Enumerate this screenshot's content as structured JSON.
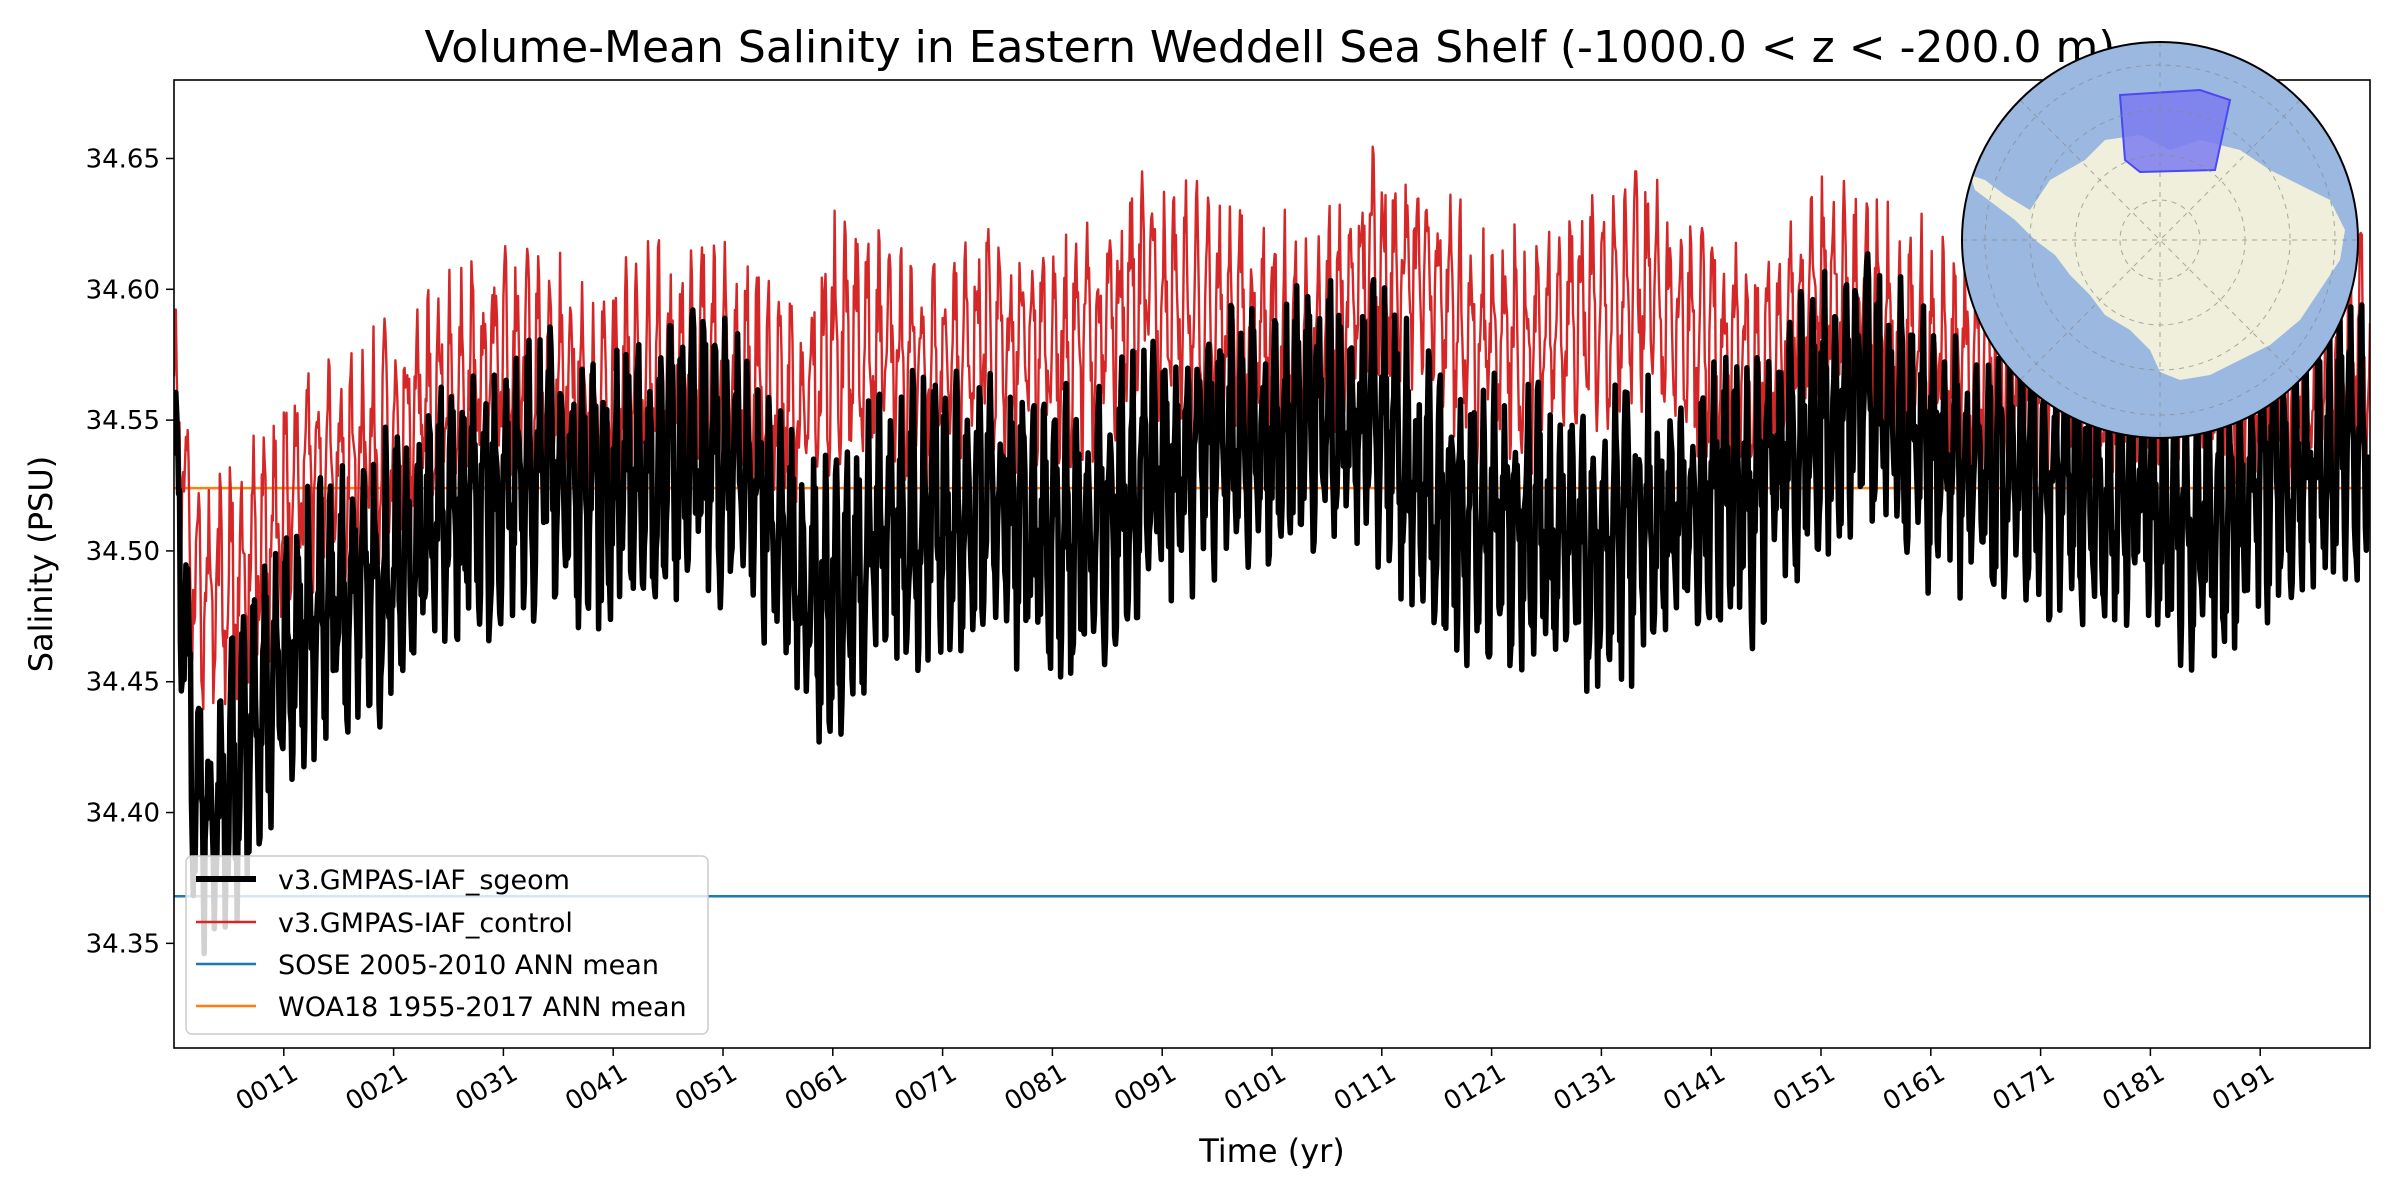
{
  "chart_data": {
    "type": "line",
    "title": "Volume-Mean Salinity in Eastern Weddell Sea Shelf (-1000.0 < z < -200.0 m)",
    "xlabel": "Time (yr)",
    "ylabel": "Salinity (PSU)",
    "xlim": [
      1,
      201
    ],
    "ylim": [
      34.31,
      34.68
    ],
    "x_ticks": [
      11,
      21,
      31,
      41,
      51,
      61,
      71,
      81,
      91,
      101,
      111,
      121,
      131,
      141,
      151,
      161,
      171,
      181,
      191
    ],
    "x_tick_labels": [
      "0011",
      "0021",
      "0031",
      "0041",
      "0051",
      "0061",
      "0071",
      "0081",
      "0091",
      "0101",
      "0111",
      "0121",
      "0131",
      "0141",
      "0151",
      "0161",
      "0171",
      "0181",
      "0191"
    ],
    "y_ticks": [
      34.35,
      34.4,
      34.45,
      34.5,
      34.55,
      34.6,
      34.65
    ],
    "y_tick_labels": [
      "34.35",
      "34.40",
      "34.45",
      "34.50",
      "34.55",
      "34.60",
      "34.65"
    ],
    "grid": false,
    "legend_position": "lower-left",
    "series": [
      {
        "name": "v3.GMPAS-IAF_sgeom",
        "color": "#000000",
        "style": "thick-monthly-series",
        "annual_mean": {
          "years": [
            1,
            3,
            5,
            7,
            10,
            13,
            16,
            20,
            25,
            30,
            35,
            40,
            45,
            50,
            55,
            58,
            61,
            64,
            67,
            70,
            75,
            80,
            85,
            90,
            95,
            100,
            105,
            110,
            115,
            120,
            125,
            130,
            135,
            140,
            145,
            150,
            155,
            160,
            165,
            170,
            175,
            180,
            185,
            190,
            195,
            200
          ],
          "values": [
            34.55,
            34.4,
            34.4,
            34.42,
            34.45,
            34.47,
            34.48,
            34.49,
            34.51,
            34.52,
            34.53,
            34.52,
            34.53,
            34.54,
            34.52,
            34.49,
            34.48,
            34.5,
            34.51,
            34.51,
            34.52,
            34.5,
            34.51,
            34.53,
            34.54,
            34.54,
            34.55,
            34.55,
            34.52,
            34.51,
            34.51,
            34.5,
            34.51,
            34.52,
            34.52,
            34.55,
            34.56,
            34.54,
            34.53,
            34.53,
            34.52,
            34.52,
            34.51,
            34.52,
            34.53,
            34.54
          ]
        },
        "seasonal_amplitude": 0.035
      },
      {
        "name": "v3.GMPAS-IAF_control",
        "color": "#d62728",
        "style": "thin-monthly-series",
        "annual_mean": {
          "years": [
            1,
            3,
            5,
            7,
            10,
            13,
            16,
            20,
            25,
            30,
            35,
            40,
            45,
            50,
            55,
            58,
            61,
            64,
            67,
            70,
            75,
            80,
            85,
            90,
            95,
            100,
            105,
            110,
            115,
            120,
            125,
            130,
            135,
            140,
            145,
            150,
            155,
            160,
            165,
            170,
            175,
            180,
            185,
            190,
            195,
            200
          ],
          "values": [
            34.57,
            34.49,
            34.48,
            34.49,
            34.51,
            34.53,
            34.53,
            34.54,
            34.56,
            34.57,
            34.57,
            34.56,
            34.57,
            34.57,
            34.56,
            34.55,
            34.58,
            34.58,
            34.57,
            34.57,
            34.58,
            34.58,
            34.58,
            34.6,
            34.59,
            34.58,
            34.58,
            34.61,
            34.6,
            34.58,
            34.58,
            34.59,
            34.6,
            34.58,
            34.57,
            34.6,
            34.59,
            34.58,
            34.57,
            34.58,
            34.57,
            34.58,
            34.57,
            34.57,
            34.57,
            34.58
          ]
        },
        "seasonal_amplitude": 0.03
      },
      {
        "name": "SOSE 2005-2010 ANN mean",
        "color": "#1f77b4",
        "style": "constant",
        "value": 34.368
      },
      {
        "name": "WOA18 1955-2017 ANN mean",
        "color": "#ff7f0e",
        "style": "constant",
        "value": 34.524
      }
    ],
    "inset_map": {
      "description_icon": "antarctic-polar-map-icon",
      "ocean_color": "#9bb8e0",
      "land_color": "#efefdc",
      "highlight_color": "#7b7bf0"
    }
  }
}
